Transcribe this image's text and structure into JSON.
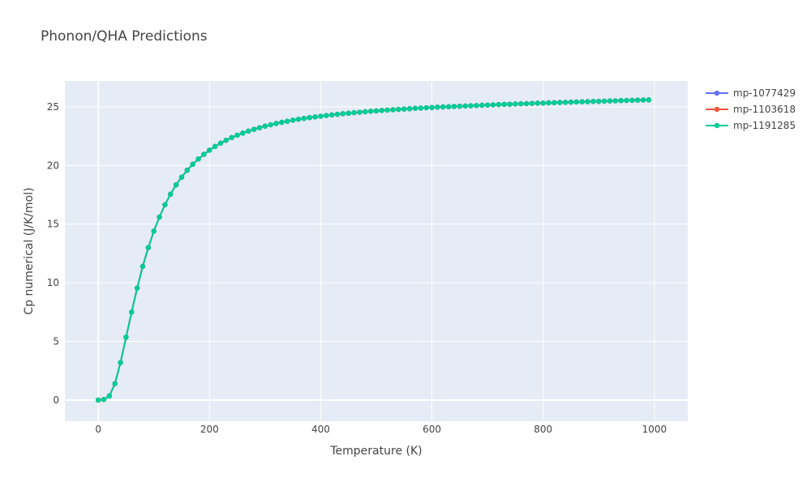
{
  "chart_data": {
    "type": "line",
    "title": "Phonon/QHA Predictions",
    "xlabel": "Temperature (K)",
    "ylabel": "Cp numerical (J/K/mol)",
    "xlim": [
      -60,
      1060
    ],
    "ylim": [
      -1.8,
      27.2
    ],
    "x_ticks": [
      0,
      200,
      400,
      600,
      800,
      1000
    ],
    "y_ticks": [
      0,
      5,
      10,
      15,
      20,
      25
    ],
    "x_tick_labels": [
      "0",
      "200",
      "400",
      "600",
      "800",
      "1000"
    ],
    "y_tick_labels": [
      "0",
      "5",
      "10",
      "15",
      "20",
      "25"
    ],
    "grid": true,
    "legend_position": "top-right",
    "plot_bgcolor": "#e5ecf6",
    "x": [
      0,
      10,
      20,
      30,
      40,
      50,
      60,
      70,
      80,
      90,
      100,
      110,
      120,
      130,
      140,
      150,
      160,
      170,
      180,
      190,
      200,
      210,
      220,
      230,
      240,
      250,
      260,
      270,
      280,
      290,
      300,
      310,
      320,
      330,
      340,
      350,
      360,
      370,
      380,
      390,
      400,
      410,
      420,
      430,
      440,
      450,
      460,
      470,
      480,
      490,
      500,
      510,
      520,
      530,
      540,
      550,
      560,
      570,
      580,
      590,
      600,
      610,
      620,
      630,
      640,
      650,
      660,
      670,
      680,
      690,
      700,
      710,
      720,
      730,
      740,
      750,
      760,
      770,
      780,
      790,
      800,
      810,
      820,
      830,
      840,
      850,
      860,
      870,
      880,
      890,
      900,
      910,
      920,
      930,
      940,
      950,
      960,
      970,
      980,
      990
    ],
    "series": [
      {
        "name": "mp-1077429",
        "color": "#636efa",
        "values": [
          0,
          0.05,
          0.35,
          1.4,
          3.2,
          5.35,
          7.5,
          9.55,
          11.4,
          13.0,
          14.4,
          15.6,
          16.65,
          17.55,
          18.35,
          19.0,
          19.6,
          20.1,
          20.55,
          20.95,
          21.3,
          21.62,
          21.9,
          22.15,
          22.38,
          22.58,
          22.76,
          22.93,
          23.08,
          23.22,
          23.35,
          23.47,
          23.58,
          23.68,
          23.77,
          23.86,
          23.94,
          24.01,
          24.08,
          24.14,
          24.2,
          24.26,
          24.31,
          24.36,
          24.41,
          24.45,
          24.5,
          24.54,
          24.58,
          24.62,
          24.65,
          24.69,
          24.72,
          24.75,
          24.78,
          24.81,
          24.84,
          24.87,
          24.89,
          24.92,
          24.94,
          24.97,
          24.99,
          25.01,
          25.03,
          25.05,
          25.07,
          25.09,
          25.11,
          25.13,
          25.15,
          25.17,
          25.19,
          25.21,
          25.22,
          25.24,
          25.26,
          25.27,
          25.29,
          25.31,
          25.32,
          25.34,
          25.35,
          25.37,
          25.38,
          25.4,
          25.41,
          25.43,
          25.44,
          25.46,
          25.47,
          25.48,
          25.5,
          25.51,
          25.53,
          25.54,
          25.55,
          25.57,
          25.58,
          25.59
        ]
      },
      {
        "name": "mp-1103618",
        "color": "#ef553b",
        "values": [
          0,
          0.05,
          0.35,
          1.4,
          3.2,
          5.35,
          7.5,
          9.55,
          11.4,
          13.0,
          14.4,
          15.6,
          16.65,
          17.55,
          18.35,
          19.0,
          19.6,
          20.1,
          20.55,
          20.95,
          21.3,
          21.62,
          21.9,
          22.15,
          22.38,
          22.58,
          22.76,
          22.93,
          23.08,
          23.22,
          23.35,
          23.47,
          23.58,
          23.68,
          23.77,
          23.86,
          23.94,
          24.01,
          24.08,
          24.14,
          24.2,
          24.26,
          24.31,
          24.36,
          24.41,
          24.45,
          24.5,
          24.54,
          24.58,
          24.62,
          24.65,
          24.69,
          24.72,
          24.75,
          24.78,
          24.81,
          24.84,
          24.87,
          24.89,
          24.92,
          24.94,
          24.97,
          24.99,
          25.01,
          25.03,
          25.05,
          25.07,
          25.09,
          25.11,
          25.13,
          25.15,
          25.17,
          25.19,
          25.21,
          25.22,
          25.24,
          25.26,
          25.27,
          25.29,
          25.31,
          25.32,
          25.34,
          25.35,
          25.37,
          25.38,
          25.4,
          25.41,
          25.43,
          25.44,
          25.46,
          25.47,
          25.48,
          25.5,
          25.51,
          25.53,
          25.54,
          25.55,
          25.57,
          25.58,
          25.59
        ]
      },
      {
        "name": "mp-1191285",
        "color": "#00cc96",
        "values": [
          0,
          0.05,
          0.35,
          1.4,
          3.2,
          5.35,
          7.5,
          9.55,
          11.4,
          13.0,
          14.4,
          15.6,
          16.65,
          17.55,
          18.35,
          19.0,
          19.6,
          20.1,
          20.55,
          20.95,
          21.3,
          21.62,
          21.9,
          22.15,
          22.38,
          22.58,
          22.76,
          22.93,
          23.08,
          23.22,
          23.35,
          23.47,
          23.58,
          23.68,
          23.77,
          23.86,
          23.94,
          24.01,
          24.08,
          24.14,
          24.2,
          24.26,
          24.31,
          24.36,
          24.41,
          24.45,
          24.5,
          24.54,
          24.58,
          24.62,
          24.65,
          24.69,
          24.72,
          24.75,
          24.78,
          24.81,
          24.84,
          24.87,
          24.89,
          24.92,
          24.94,
          24.97,
          24.99,
          25.01,
          25.03,
          25.05,
          25.07,
          25.09,
          25.11,
          25.13,
          25.15,
          25.17,
          25.19,
          25.21,
          25.22,
          25.24,
          25.26,
          25.27,
          25.29,
          25.31,
          25.32,
          25.34,
          25.35,
          25.37,
          25.38,
          25.4,
          25.41,
          25.43,
          25.44,
          25.46,
          25.47,
          25.48,
          25.5,
          25.51,
          25.53,
          25.54,
          25.55,
          25.57,
          25.58,
          25.59
        ]
      }
    ]
  }
}
